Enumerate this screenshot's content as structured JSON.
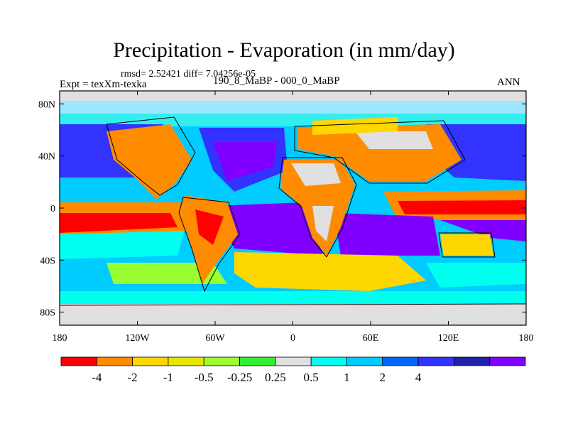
{
  "chart_data": {
    "type": "heatmap",
    "title": "Precipitation - Evaporation (in mm/day)",
    "subtitle_stats": "rmsd= 2.52421 diff= 7.04256e-05",
    "left_label": "Expt = texXm-texka",
    "center_label": "190_8_MaBP - 000_0_MaBP",
    "right_label": "ANN",
    "x_ticks": [
      "180",
      "120W",
      "60W",
      "0",
      "60E",
      "120E",
      "180"
    ],
    "y_ticks": [
      "80N",
      "40N",
      "0",
      "40S",
      "80S"
    ],
    "xlim": [
      -180,
      180
    ],
    "ylim": [
      -90,
      90
    ],
    "colorbar": {
      "labels": [
        "-4",
        "-2",
        "-1",
        "-0.5",
        "-0.25",
        "0.25",
        "0.5",
        "1",
        "2",
        "4"
      ],
      "colors": [
        "#ff0000",
        "#ff8c00",
        "#ffd700",
        "#e6e600",
        "#99ff33",
        "#33ee33",
        "#e0e0e0",
        "#00ffee",
        "#00ccff",
        "#0066ff",
        "#3333ff",
        "#2020aa",
        "#8000ff"
      ]
    },
    "regions": [
      {
        "name": "arctic-band",
        "color": "#9ee6ff"
      },
      {
        "name": "north-atlantic",
        "color": "#3333ff"
      },
      {
        "name": "north-pacific",
        "color": "#3333ff"
      },
      {
        "name": "indian-ocean-south",
        "color": "#8000ff"
      },
      {
        "name": "south-atlantic",
        "color": "#8000ff"
      },
      {
        "name": "southern-ocean-yellow",
        "color": "#ffd700"
      },
      {
        "name": "equatorial-pacific-red",
        "color": "#ff0000"
      },
      {
        "name": "america-orange",
        "color": "#ff8c00"
      },
      {
        "name": "asia-orange",
        "color": "#ff8c00"
      },
      {
        "name": "africa-gray",
        "color": "#e0e0e0"
      },
      {
        "name": "antarctica-gray",
        "color": "#e0e0e0"
      }
    ]
  }
}
